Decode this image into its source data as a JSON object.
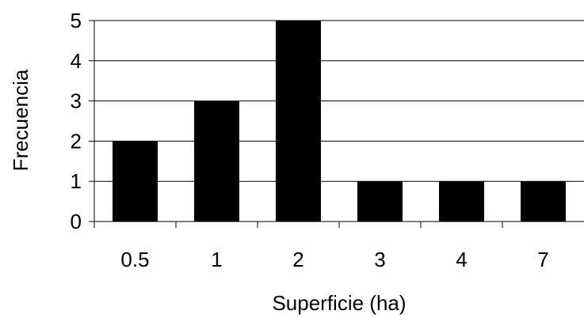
{
  "chart_data": {
    "type": "bar",
    "title": "",
    "xlabel": "Superficie (ha)",
    "ylabel": "Frecuencia",
    "categories": [
      "0.5",
      "1",
      "2",
      "3",
      "4",
      "7"
    ],
    "values": [
      2,
      3,
      5,
      1,
      1,
      1
    ],
    "ylim": [
      0,
      5
    ],
    "yticks": [
      "0",
      "1",
      "2",
      "3",
      "4",
      "5"
    ],
    "grid": "horizontal",
    "legend": "none",
    "bar_color": "#000000",
    "grid_color": "#000000"
  }
}
